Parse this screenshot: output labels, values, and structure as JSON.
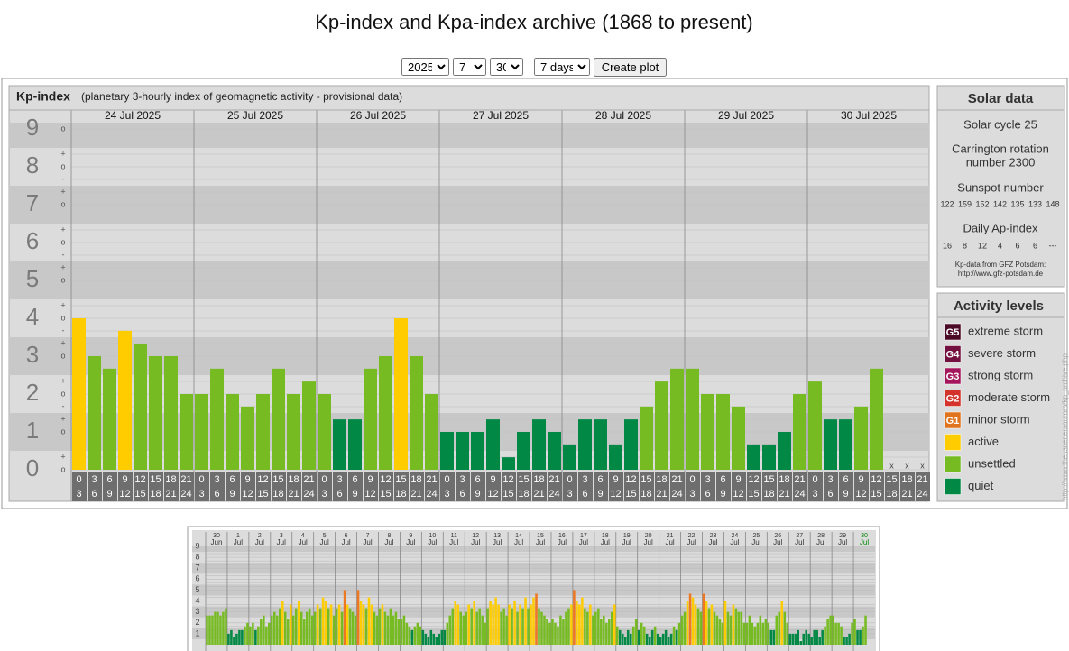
{
  "page_title": "Kp-index and Kpa-index archive (1868 to present)",
  "controls": {
    "year": "2025",
    "month": "7",
    "day": "30",
    "range": "7 days",
    "button": "Create plot"
  },
  "chart_data": [
    {
      "type": "bar",
      "title": "Kp-index",
      "subtitle": "(planetary 3-hourly index of geomagnetic activity - provisional data)",
      "days": [
        "24 Jul 2025",
        "25 Jul 2025",
        "26 Jul 2025",
        "27 Jul 2025",
        "28 Jul 2025",
        "29 Jul 2025",
        "30 Jul 2025"
      ],
      "hour_ranges": [
        [
          0,
          3
        ],
        [
          3,
          6
        ],
        [
          6,
          9
        ],
        [
          9,
          12
        ],
        [
          12,
          15
        ],
        [
          15,
          18
        ],
        [
          18,
          21
        ],
        [
          21,
          24
        ]
      ],
      "values": [
        4,
        3,
        2.67,
        3.67,
        3.33,
        3,
        3,
        2,
        2,
        2.67,
        2,
        1.67,
        2,
        2.67,
        2,
        2.33,
        2,
        1.33,
        1.33,
        2.67,
        3,
        4,
        3,
        2,
        1,
        1,
        1,
        1.33,
        0.33,
        1,
        1.33,
        1,
        0.67,
        1.33,
        1.33,
        0.67,
        1.33,
        1.67,
        2.33,
        2.67,
        2.67,
        2,
        2,
        1.67,
        0.67,
        0.67,
        1,
        2,
        2.33,
        1.33,
        1.33,
        1.67,
        2.67,
        null,
        null,
        null
      ],
      "colors": [
        "#fc0",
        "#7b2",
        "#7b2",
        "#fc0",
        "#7b2",
        "#7b2",
        "#7b2",
        "#7b2",
        "#7b2",
        "#7b2",
        "#7b2",
        "#7b2",
        "#7b2",
        "#7b2",
        "#7b2",
        "#7b2",
        "#7b2",
        "#084",
        "#084",
        "#7b2",
        "#7b2",
        "#fc0",
        "#7b2",
        "#7b2",
        "#084",
        "#084",
        "#084",
        "#084",
        "#084",
        "#084",
        "#084",
        "#084",
        "#084",
        "#084",
        "#084",
        "#084",
        "#084",
        "#7b2",
        "#7b2",
        "#7b2",
        "#7b2",
        "#7b2",
        "#7b2",
        "#7b2",
        "#084",
        "#084",
        "#084",
        "#7b2",
        "#7b2",
        "#084",
        "#084",
        "#7b2",
        "#7b2",
        null,
        null,
        null
      ],
      "missing_label": "x",
      "ylim": [
        0,
        9
      ],
      "yticks": [
        0,
        1,
        2,
        3,
        4,
        5,
        6,
        7,
        8,
        9
      ],
      "minor_tick_labels": [
        "o",
        "+",
        "-"
      ]
    },
    {
      "type": "bar",
      "days": [
        [
          "30",
          "Jun"
        ],
        [
          "1",
          "Jul"
        ],
        [
          "2",
          "Jul"
        ],
        [
          "3",
          "Jul"
        ],
        [
          "4",
          "Jul"
        ],
        [
          "5",
          "Jul"
        ],
        [
          "6",
          "Jul"
        ],
        [
          "7",
          "Jul"
        ],
        [
          "8",
          "Jul"
        ],
        [
          "9",
          "Jul"
        ],
        [
          "10",
          "Jul"
        ],
        [
          "11",
          "Jul"
        ],
        [
          "12",
          "Jul"
        ],
        [
          "13",
          "Jul"
        ],
        [
          "14",
          "Jul"
        ],
        [
          "15",
          "Jul"
        ],
        [
          "16",
          "Jul"
        ],
        [
          "17",
          "Jul"
        ],
        [
          "18",
          "Jul"
        ],
        [
          "19",
          "Jul"
        ],
        [
          "20",
          "Jul"
        ],
        [
          "21",
          "Jul"
        ],
        [
          "22",
          "Jul"
        ],
        [
          "23",
          "Jul"
        ],
        [
          "24",
          "Jul"
        ],
        [
          "25",
          "Jul"
        ],
        [
          "26",
          "Jul"
        ],
        [
          "27",
          "Jul"
        ],
        [
          "28",
          "Jul"
        ],
        [
          "29",
          "Jul"
        ],
        [
          "30",
          "Jul"
        ]
      ],
      "values": [
        2.67,
        2.67,
        2.67,
        3,
        3,
        2.67,
        3,
        3.33,
        1,
        1.33,
        0.67,
        1,
        1.33,
        1.33,
        1.67,
        2,
        1.67,
        2,
        1.33,
        1.67,
        2.33,
        2.67,
        1.67,
        2,
        2.67,
        3,
        2.67,
        3.33,
        4,
        3,
        2.33,
        3.67,
        2.67,
        3.33,
        4,
        3,
        2.33,
        3,
        3.33,
        2.67,
        3,
        3.67,
        3.33,
        4.33,
        4,
        3.33,
        3.67,
        2.67,
        3.33,
        3.67,
        3,
        5,
        3.67,
        3.33,
        3,
        2.67,
        5,
        4,
        3.67,
        3.33,
        4.33,
        3.67,
        3,
        2.67,
        3.33,
        3.67,
        3,
        2.67,
        3.33,
        2.67,
        3,
        2.33,
        2.33,
        2.67,
        2,
        1.67,
        1.33,
        1.67,
        2,
        1.67,
        1.33,
        1,
        0.67,
        1.33,
        1,
        0.67,
        1,
        1.33,
        1.33,
        2,
        2.67,
        3.33,
        4,
        3.67,
        3,
        2.67,
        3,
        3.67,
        3.33,
        4,
        3,
        3.33,
        2.67,
        2,
        3.33,
        4,
        3.67,
        4.33,
        3.67,
        3,
        3.33,
        2.67,
        3.67,
        3.33,
        4,
        3,
        3.67,
        3.33,
        4.33,
        3.33,
        3.67,
        4.33,
        4.67,
        3.33,
        3,
        2.67,
        2.33,
        2,
        2.33,
        2,
        1.67,
        2.67,
        2.33,
        3,
        3.33,
        3.67,
        5,
        4,
        3.67,
        4.33,
        3.33,
        3,
        3.67,
        2.67,
        3,
        3.33,
        2.33,
        2.67,
        2,
        2.33,
        3,
        3.67,
        1.67,
        1.33,
        1,
        0.67,
        1.33,
        1,
        1.67,
        2.33,
        1.33,
        2,
        1.67,
        1,
        0.67,
        1.33,
        1.67,
        1,
        0.67,
        1,
        1.33,
        0.67,
        1,
        1.67,
        1.33,
        2,
        2.67,
        3,
        4,
        4.67,
        4.33,
        3.67,
        3.33,
        3,
        4.67,
        4,
        3.33,
        3.67,
        3,
        2.67,
        2.33,
        2,
        4,
        3,
        2.67,
        3.67,
        3.33,
        3,
        3,
        2,
        2,
        2.67,
        2,
        1.67,
        2,
        2.67,
        2,
        2.33,
        2,
        1.33,
        1.33,
        2.67,
        3,
        4,
        3,
        2,
        1,
        1,
        1,
        1.33,
        0.33,
        1,
        1.33,
        1,
        0.67,
        1.33,
        1.33,
        0.67,
        1.33,
        1.67,
        2.33,
        2.67,
        2.67,
        2,
        2,
        1.67,
        0.67,
        0.67,
        1,
        2,
        2.33,
        1.33,
        1.33,
        1.67,
        2.67,
        null,
        null,
        null
      ],
      "colors": [
        "#7b2",
        "#7b2",
        "#7b2",
        "#7b2",
        "#7b2",
        "#7b2",
        "#7b2",
        "#7b2",
        "#084",
        "#084",
        "#084",
        "#084",
        "#084",
        "#084",
        "#7b2",
        "#7b2",
        "#7b2",
        "#7b2",
        "#084",
        "#7b2",
        "#7b2",
        "#7b2",
        "#7b2",
        "#7b2",
        "#7b2",
        "#7b2",
        "#7b2",
        "#7b2",
        "#fc0",
        "#7b2",
        "#7b2",
        "#fc0",
        "#7b2",
        "#7b2",
        "#fc0",
        "#7b2",
        "#7b2",
        "#7b2",
        "#7b2",
        "#7b2",
        "#7b2",
        "#fc0",
        "#7b2",
        "#fc0",
        "#fc0",
        "#7b2",
        "#fc0",
        "#7b2",
        "#7b2",
        "#fc0",
        "#7b2",
        "#e72",
        "#fc0",
        "#7b2",
        "#7b2",
        "#7b2",
        "#e72",
        "#fc0",
        "#fc0",
        "#7b2",
        "#fc0",
        "#fc0",
        "#7b2",
        "#7b2",
        "#7b2",
        "#fc0",
        "#7b2",
        "#7b2",
        "#7b2",
        "#7b2",
        "#7b2",
        "#7b2",
        "#7b2",
        "#7b2",
        "#7b2",
        "#7b2",
        "#084",
        "#7b2",
        "#7b2",
        "#7b2",
        "#084",
        "#084",
        "#084",
        "#084",
        "#084",
        "#084",
        "#084",
        "#084",
        "#084",
        "#7b2",
        "#7b2",
        "#7b2",
        "#fc0",
        "#fc0",
        "#7b2",
        "#7b2",
        "#7b2",
        "#fc0",
        "#7b2",
        "#fc0",
        "#7b2",
        "#7b2",
        "#7b2",
        "#7b2",
        "#7b2",
        "#fc0",
        "#fc0",
        "#fc0",
        "#fc0",
        "#7b2",
        "#7b2",
        "#7b2",
        "#fc0",
        "#7b2",
        "#fc0",
        "#7b2",
        "#fc0",
        "#7b2",
        "#fc0",
        "#7b2",
        "#fc0",
        "#fc0",
        "#e72",
        "#7b2",
        "#7b2",
        "#7b2",
        "#7b2",
        "#7b2",
        "#7b2",
        "#7b2",
        "#7b2",
        "#7b2",
        "#7b2",
        "#7b2",
        "#7b2",
        "#fc0",
        "#e72",
        "#fc0",
        "#fc0",
        "#fc0",
        "#7b2",
        "#7b2",
        "#fc0",
        "#7b2",
        "#7b2",
        "#7b2",
        "#7b2",
        "#7b2",
        "#7b2",
        "#7b2",
        "#7b2",
        "#fc0",
        "#7b2",
        "#084",
        "#084",
        "#084",
        "#084",
        "#084",
        "#7b2",
        "#7b2",
        "#084",
        "#7b2",
        "#7b2",
        "#084",
        "#084",
        "#084",
        "#7b2",
        "#084",
        "#084",
        "#084",
        "#084",
        "#084",
        "#084",
        "#7b2",
        "#084",
        "#7b2",
        "#7b2",
        "#7b2",
        "#fc0",
        "#e72",
        "#fc0",
        "#fc0",
        "#7b2",
        "#7b2",
        "#e72",
        "#fc0",
        "#7b2",
        "#fc0",
        "#7b2",
        "#7b2",
        "#7b2",
        "#7b2",
        "#fc0",
        "#7b2",
        "#7b2",
        "#fc0",
        "#7b2",
        "#7b2",
        "#7b2",
        "#7b2",
        "#7b2",
        "#7b2",
        "#7b2",
        "#7b2",
        "#7b2",
        "#7b2",
        "#7b2",
        "#7b2",
        "#7b2",
        "#084",
        "#084",
        "#7b2",
        "#7b2",
        "#fc0",
        "#7b2",
        "#7b2",
        "#084",
        "#084",
        "#084",
        "#084",
        "#084",
        "#084",
        "#084",
        "#084",
        "#084",
        "#084",
        "#084",
        "#084",
        "#084",
        "#7b2",
        "#7b2",
        "#7b2",
        "#7b2",
        "#7b2",
        "#7b2",
        "#7b2",
        "#084",
        "#084",
        "#084",
        "#7b2",
        "#7b2",
        "#084",
        "#084",
        "#7b2",
        "#7b2",
        null,
        null,
        null
      ],
      "ylim": [
        0,
        9
      ],
      "yticks": [
        1,
        2,
        3,
        4,
        5,
        6,
        7,
        8,
        9
      ]
    }
  ],
  "solar_data": {
    "title": "Solar data",
    "cycle": "Solar cycle 25",
    "carrington_1": "Carrington rotation",
    "carrington_2": "number 2300",
    "sunspot_title": "Sunspot number",
    "sunspot_numbers": [
      122,
      159,
      152,
      142,
      135,
      133,
      148
    ],
    "ap_title": "Daily Ap-index",
    "ap_values": [
      16,
      8,
      12,
      4,
      6,
      6,
      null
    ],
    "ap_missing_label": "---",
    "source_1": "Kp-data from GFZ Potsdam:",
    "source_2": "http://www.gfz-potsdam.de"
  },
  "activity_levels": {
    "title": "Activity levels",
    "items": [
      {
        "badge": "G5",
        "label": "extreme storm",
        "color": "#4b0a25"
      },
      {
        "badge": "G4",
        "label": "severe storm",
        "color": "#74103f"
      },
      {
        "badge": "G3",
        "label": "strong storm",
        "color": "#a5155c"
      },
      {
        "badge": "G2",
        "label": "moderate storm",
        "color": "#d3332a"
      },
      {
        "badge": "G1",
        "label": "minor storm",
        "color": "#e0741e"
      },
      {
        "label": "active",
        "color": "#fc0"
      },
      {
        "label": "unsettled",
        "color": "#7b2"
      },
      {
        "label": "quiet",
        "color": "#084"
      }
    ]
  },
  "side_url": "http://www.theusner.eu/aurora/kp_archive.php"
}
